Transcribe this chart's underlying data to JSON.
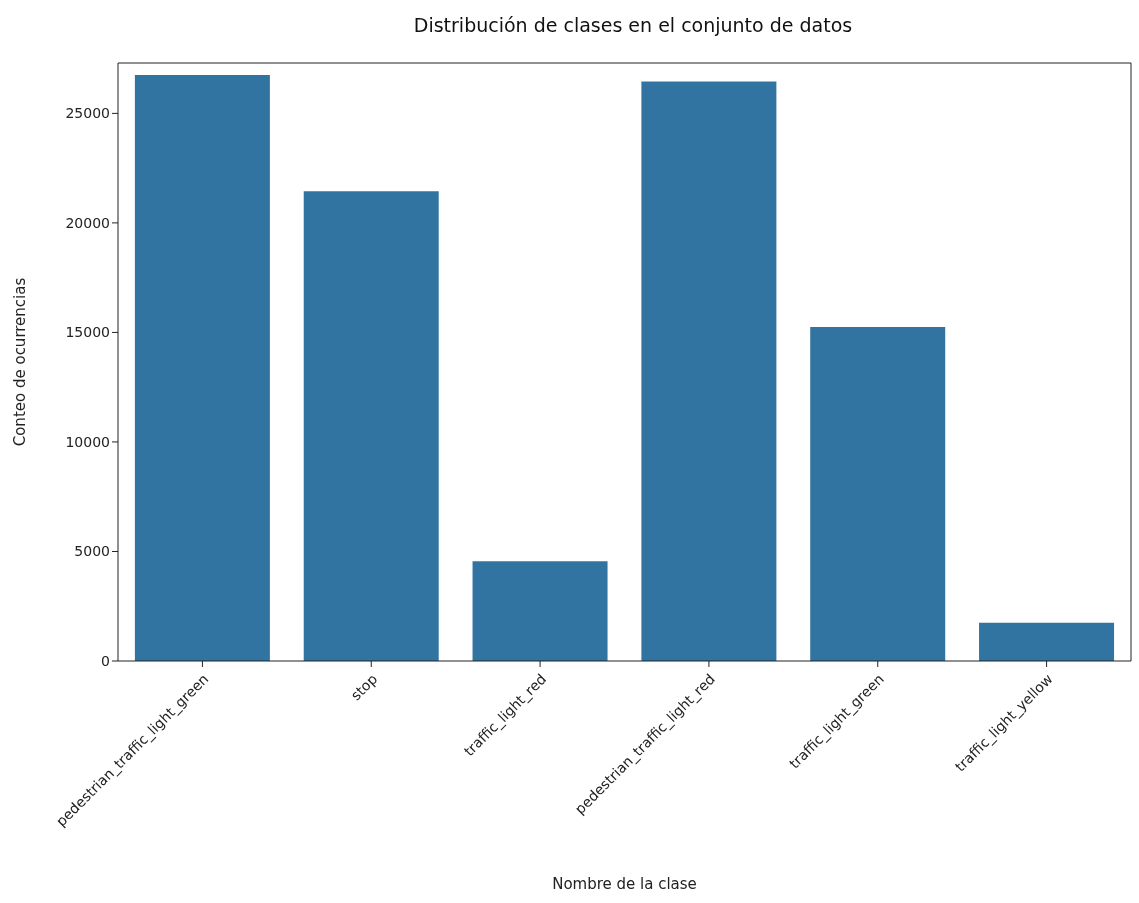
{
  "chart_data": {
    "type": "bar",
    "title": "Distribución de clases en el conjunto de datos",
    "xlabel": "Nombre de la clase",
    "ylabel": "Conteo de ocurrencias",
    "categories": [
      "pedestrian_traffic_light_green",
      "stop",
      "traffic_light_red",
      "pedestrian_traffic_light_red",
      "traffic_light_green",
      "traffic_light_yellow"
    ],
    "values": [
      26750,
      21450,
      4550,
      26450,
      15250,
      1750
    ],
    "color": "#3274a1",
    "ylim": [
      0,
      27300
    ],
    "yticks": [
      0,
      5000,
      10000,
      15000,
      20000,
      25000
    ],
    "grid": false
  }
}
